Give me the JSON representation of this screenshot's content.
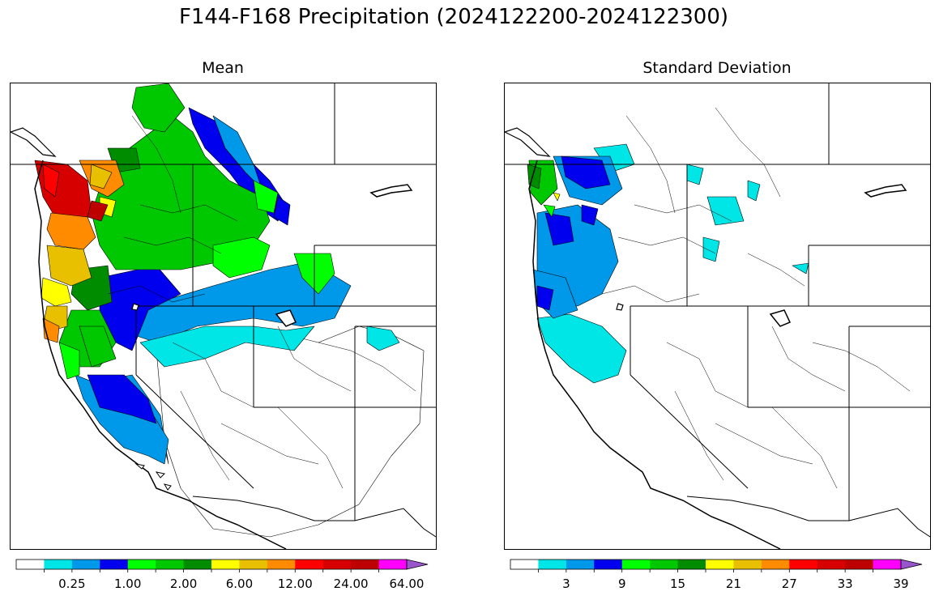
{
  "figure": {
    "title": "F144-F168 Precipitation (2024122200-2024122300)"
  },
  "panels": {
    "mean": {
      "title": "Mean",
      "colorbar": {
        "tick_labels": [
          "0.25",
          "1.00",
          "2.00",
          "6.00",
          "12.00",
          "24.00",
          "64.00"
        ],
        "colors": [
          "#ffffff",
          "#00e5e5",
          "#0098e8",
          "#0000ee",
          "#00ff00",
          "#00c800",
          "#008c00",
          "#ffff00",
          "#e8c000",
          "#ff8c00",
          "#ff0000",
          "#d60000",
          "#bd0000",
          "#ff00ff",
          "#9955cc"
        ],
        "extend": "max"
      }
    },
    "stdev": {
      "title": "Standard Deviation",
      "colorbar": {
        "tick_labels": [
          "3",
          "9",
          "15",
          "21",
          "27",
          "33",
          "39"
        ],
        "colors": [
          "#ffffff",
          "#00e5e5",
          "#0098e8",
          "#0000ee",
          "#00ff00",
          "#00c800",
          "#008c00",
          "#ffff00",
          "#e8c000",
          "#ff8c00",
          "#ff0000",
          "#d60000",
          "#bd0000",
          "#ff00ff",
          "#9955cc"
        ],
        "extend": "max"
      }
    }
  }
}
